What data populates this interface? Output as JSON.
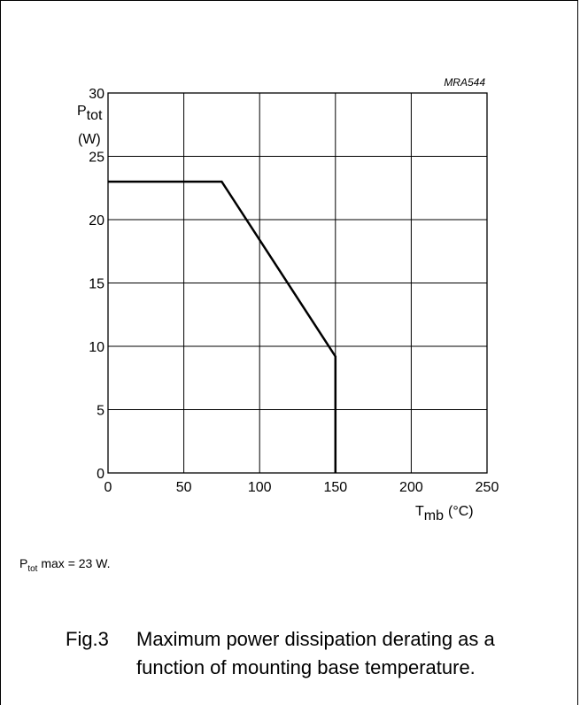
{
  "figure": {
    "code": "MRA544",
    "note": {
      "sym": "P",
      "sub": "tot",
      "rest": " max = 23 W."
    },
    "caption_label": "Fig.3",
    "caption_line1": "Maximum power dissipation derating as a",
    "caption_line2": "function of mounting base temperature."
  },
  "chart_data": {
    "type": "line",
    "title": "",
    "x_axis": {
      "label_sym": "T",
      "label_sub": "mb",
      "label_unit": "(°C)",
      "ticks": [
        0,
        50,
        100,
        150,
        200,
        250
      ],
      "range": [
        0,
        250
      ]
    },
    "y_axis": {
      "label_sym": "P",
      "label_sub": "tot",
      "label_unit": "(W)",
      "ticks": [
        0,
        5,
        10,
        15,
        20,
        25,
        30
      ],
      "range": [
        0,
        30
      ]
    },
    "grid": true,
    "series": [
      {
        "x": [
          0,
          75,
          150,
          150
        ],
        "y": [
          23,
          23,
          9.2,
          0
        ]
      }
    ]
  }
}
